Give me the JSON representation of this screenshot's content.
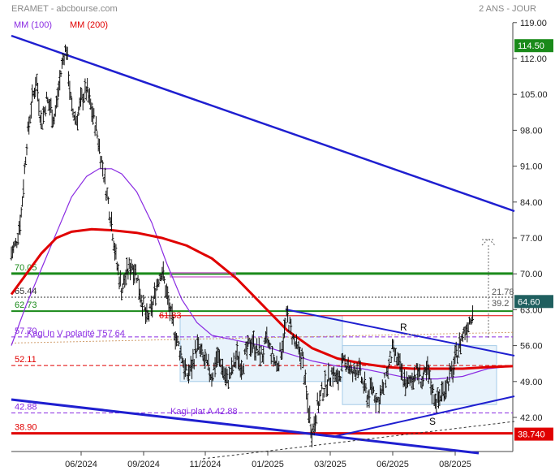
{
  "header": {
    "title": "ERAMET - abcbourse.com",
    "period": "2 ANS - JOUR"
  },
  "legend": {
    "items": [
      {
        "label": "MM (100)",
        "color": "#8a2be2"
      },
      {
        "label": "MM (200)",
        "color": "#e00000"
      }
    ]
  },
  "chart_data": {
    "type": "line",
    "ylim": [
      36,
      121
    ],
    "y_ticks": [
      "119.00",
      "112.00",
      "105.00",
      "98.00",
      "91.00",
      "84.00",
      "77.00",
      "70.00",
      "63.00",
      "56.00",
      "49.00",
      "42.00"
    ],
    "x_ticks": [
      "06/2024",
      "09/2024",
      "11/2024",
      "01/2025",
      "03/2025",
      "06/2025",
      "08/2025"
    ],
    "price_badges": [
      {
        "label": "114.50",
        "value": 114.5,
        "color": "#1a8a1a"
      },
      {
        "label": "64.60",
        "value": 64.6,
        "color": "#1f5f5f"
      },
      {
        "label": "38.740",
        "value": 38.74,
        "color": "#e00000"
      }
    ],
    "levels": [
      {
        "label": "70.05",
        "value": 70.05,
        "color": "#1a8a1a"
      },
      {
        "label": "65.44",
        "value": 65.44,
        "color": "#333333"
      },
      {
        "label": "62.73",
        "value": 62.73,
        "color": "#1a8a1a"
      },
      {
        "label": "57.70",
        "value": 57.7,
        "color": "#8a2be2"
      },
      {
        "label": "52.11",
        "value": 52.11,
        "color": "#e00000"
      },
      {
        "label": "42.88",
        "value": 42.88,
        "color": "#8a2be2"
      },
      {
        "label": "38.90",
        "value": 38.9,
        "color": "#e00000"
      }
    ],
    "annotations": [
      {
        "label": "61.83",
        "value": 61.83,
        "color": "#e00000"
      },
      {
        "label": "Kagi In V polarité T57.64",
        "color": "#8a2be2"
      },
      {
        "label": "Kagi plat A 42.88",
        "color": "#8a2be2"
      },
      {
        "label": "R",
        "color": "#000000"
      },
      {
        "label": "S",
        "color": "#000000"
      },
      {
        "label": "21.78",
        "color": "#555555"
      },
      {
        "label": "39.2",
        "color": "#555555"
      }
    ],
    "series": [
      {
        "name": "MM (100)",
        "color": "#8a2be2",
        "values": [
          [
            0,
            56
          ],
          [
            0.03,
            64
          ],
          [
            0.06,
            71
          ],
          [
            0.09,
            78
          ],
          [
            0.12,
            85
          ],
          [
            0.15,
            89
          ],
          [
            0.175,
            90.5
          ],
          [
            0.2,
            90.5
          ],
          [
            0.22,
            89.5
          ],
          [
            0.25,
            86
          ],
          [
            0.28,
            80
          ],
          [
            0.31,
            72
          ],
          [
            0.34,
            65
          ],
          [
            0.37,
            60.5
          ],
          [
            0.4,
            58
          ],
          [
            0.45,
            57
          ],
          [
            0.5,
            56
          ],
          [
            0.55,
            54.5
          ],
          [
            0.6,
            53
          ],
          [
            0.65,
            52
          ],
          [
            0.7,
            51.5
          ],
          [
            0.75,
            50.5
          ],
          [
            0.8,
            49.5
          ],
          [
            0.85,
            49.5
          ],
          [
            0.9,
            50
          ],
          [
            0.95,
            51.5
          ],
          [
            1.0,
            52
          ]
        ]
      },
      {
        "name": "MM (200)",
        "color": "#e00000",
        "values": [
          [
            0,
            66
          ],
          [
            0.03,
            70
          ],
          [
            0.06,
            74
          ],
          [
            0.09,
            77
          ],
          [
            0.12,
            78.2
          ],
          [
            0.16,
            78.7
          ],
          [
            0.2,
            78.5
          ],
          [
            0.25,
            78
          ],
          [
            0.3,
            77
          ],
          [
            0.35,
            75.5
          ],
          [
            0.4,
            73
          ],
          [
            0.45,
            69
          ],
          [
            0.5,
            64
          ],
          [
            0.55,
            59
          ],
          [
            0.6,
            55.5
          ],
          [
            0.65,
            53.5
          ],
          [
            0.7,
            52.5
          ],
          [
            0.75,
            51.8
          ],
          [
            0.8,
            51.5
          ],
          [
            0.85,
            51.5
          ],
          [
            0.9,
            51.5
          ],
          [
            0.95,
            51.8
          ],
          [
            1.0,
            52
          ]
        ]
      },
      {
        "name": "price-anchors",
        "color": "#111111",
        "values": [
          [
            0,
            74
          ],
          [
            0.01,
            76
          ],
          [
            0.02,
            82
          ],
          [
            0.03,
            95
          ],
          [
            0.04,
            103
          ],
          [
            0.05,
            108
          ],
          [
            0.06,
            99
          ],
          [
            0.07,
            104
          ],
          [
            0.08,
            102
          ],
          [
            0.085,
            100
          ],
          [
            0.09,
            103
          ],
          [
            0.1,
            110
          ],
          [
            0.105,
            113
          ],
          [
            0.11,
            114
          ],
          [
            0.115,
            108
          ],
          [
            0.12,
            102
          ],
          [
            0.13,
            100
          ],
          [
            0.14,
            104
          ],
          [
            0.15,
            106
          ],
          [
            0.16,
            102
          ],
          [
            0.17,
            98
          ],
          [
            0.18,
            92
          ],
          [
            0.19,
            86
          ],
          [
            0.2,
            80
          ],
          [
            0.21,
            72
          ],
          [
            0.22,
            67
          ],
          [
            0.23,
            70
          ],
          [
            0.24,
            72
          ],
          [
            0.25,
            70
          ],
          [
            0.26,
            65
          ],
          [
            0.27,
            61
          ],
          [
            0.28,
            63
          ],
          [
            0.29,
            68
          ],
          [
            0.3,
            71
          ],
          [
            0.31,
            66
          ],
          [
            0.32,
            61
          ],
          [
            0.33,
            57
          ],
          [
            0.34,
            54
          ],
          [
            0.35,
            50
          ],
          [
            0.36,
            52
          ],
          [
            0.37,
            56
          ],
          [
            0.38,
            54
          ],
          [
            0.39,
            52
          ],
          [
            0.4,
            50
          ],
          [
            0.41,
            54
          ],
          [
            0.42,
            52
          ],
          [
            0.43,
            49
          ],
          [
            0.44,
            51
          ],
          [
            0.45,
            54
          ],
          [
            0.46,
            52
          ],
          [
            0.47,
            55
          ],
          [
            0.48,
            57
          ],
          [
            0.49,
            55
          ],
          [
            0.5,
            54
          ],
          [
            0.51,
            57
          ],
          [
            0.52,
            54
          ],
          [
            0.53,
            52
          ],
          [
            0.54,
            56
          ],
          [
            0.55,
            62
          ],
          [
            0.56,
            58
          ],
          [
            0.57,
            55
          ],
          [
            0.58,
            54
          ],
          [
            0.59,
            45
          ],
          [
            0.6,
            39
          ],
          [
            0.61,
            44
          ],
          [
            0.62,
            47
          ],
          [
            0.63,
            49
          ],
          [
            0.64,
            51
          ],
          [
            0.65,
            49
          ],
          [
            0.66,
            52
          ],
          [
            0.67,
            53
          ],
          [
            0.68,
            50
          ],
          [
            0.69,
            52
          ],
          [
            0.7,
            49
          ],
          [
            0.71,
            46
          ],
          [
            0.72,
            48
          ],
          [
            0.73,
            45
          ],
          [
            0.74,
            47
          ],
          [
            0.75,
            51
          ],
          [
            0.76,
            55
          ],
          [
            0.77,
            53
          ],
          [
            0.78,
            50
          ],
          [
            0.79,
            48
          ],
          [
            0.8,
            50
          ],
          [
            0.81,
            51
          ],
          [
            0.82,
            49
          ],
          [
            0.83,
            51
          ],
          [
            0.84,
            47
          ],
          [
            0.85,
            45
          ],
          [
            0.86,
            47
          ],
          [
            0.87,
            49
          ],
          [
            0.88,
            51
          ],
          [
            0.89,
            55
          ],
          [
            0.9,
            58
          ],
          [
            0.91,
            60
          ],
          [
            0.92,
            63
          ]
        ]
      }
    ]
  }
}
